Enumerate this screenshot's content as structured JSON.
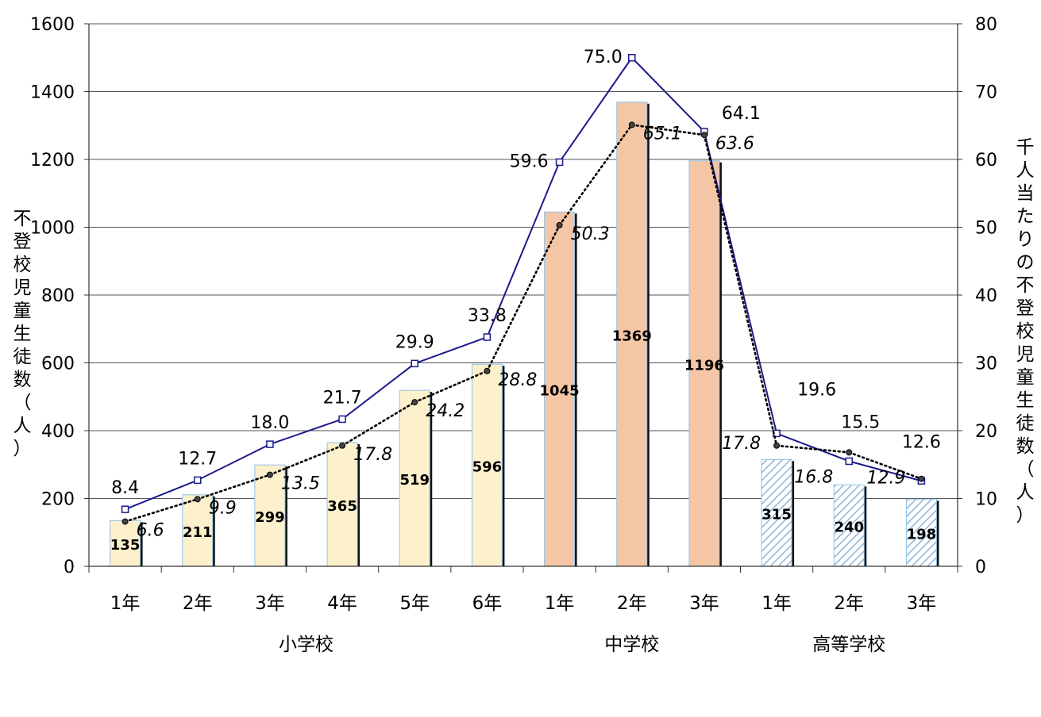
{
  "chart_data": {
    "type": "bar",
    "categories": [
      "1年",
      "2年",
      "3年",
      "4年",
      "5年",
      "6年",
      "1年",
      "2年",
      "3年",
      "1年",
      "2年",
      "3年"
    ],
    "groups": [
      {
        "label": "小学校",
        "start": 0,
        "end": 5
      },
      {
        "label": "中学校",
        "start": 6,
        "end": 8
      },
      {
        "label": "高等学校",
        "start": 9,
        "end": 11
      }
    ],
    "bar_series": {
      "values": [
        135,
        211,
        299,
        365,
        519,
        596,
        1045,
        1369,
        1196,
        315,
        240,
        198
      ],
      "labels": [
        "135",
        "211",
        "299",
        "365",
        "519",
        "596",
        "1045",
        "1369",
        "1196",
        "315",
        "240",
        "198"
      ],
      "group_fills": [
        "#fdf0cc",
        "#f5c6a5",
        "hatch"
      ]
    },
    "line_series": [
      {
        "style": "solid",
        "color": "#1a1a8c",
        "values": [
          8.4,
          12.7,
          18.0,
          21.7,
          29.9,
          33.8,
          59.6,
          75.0,
          64.1,
          19.6,
          15.5,
          12.6
        ],
        "labels": [
          "8.4",
          "12.7",
          "18.0",
          "21.7",
          "29.9",
          "33.8",
          "59.6",
          "75.0",
          "64.1",
          "19.6",
          "15.5",
          "12.6"
        ]
      },
      {
        "style": "dotted",
        "color": "#000000",
        "values": [
          6.6,
          9.9,
          13.5,
          17.8,
          24.2,
          28.8,
          50.3,
          65.1,
          63.6,
          17.8,
          16.8,
          12.9
        ],
        "labels": [
          "6.6",
          "9.9",
          "13.5",
          "17.8",
          "24.2",
          "28.8",
          "50.3",
          "65.1",
          "63.6",
          "17.8",
          "16.8",
          "12.9"
        ]
      }
    ],
    "y_left": {
      "label": "不登校児童生徒数（人）",
      "range": [
        0,
        1600
      ],
      "ticks": [
        "0",
        "200",
        "400",
        "600",
        "800",
        "1000",
        "1200",
        "1400",
        "1600"
      ]
    },
    "y_right": {
      "label": "千人当たりの不登校児童生徒数（人）",
      "range": [
        0,
        80
      ],
      "ticks": [
        "0",
        "10",
        "20",
        "30",
        "40",
        "50",
        "60",
        "70",
        "80"
      ]
    },
    "grid": true
  }
}
